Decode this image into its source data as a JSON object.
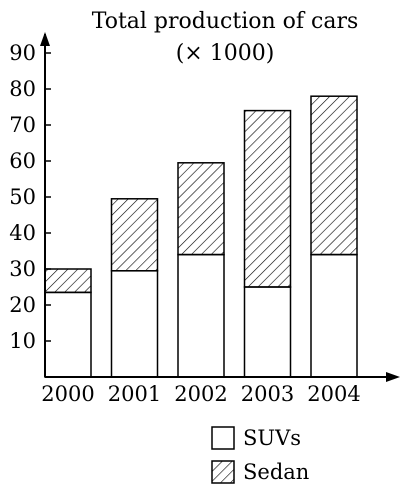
{
  "chart_data": {
    "type": "bar",
    "stacked": true,
    "title": "Total production of cars",
    "subtitle": "(× 1000)",
    "categories": [
      "2000",
      "2001",
      "2002",
      "2003",
      "2004"
    ],
    "series": [
      {
        "name": "SUVs",
        "values": [
          23.5,
          29.5,
          34,
          25,
          34
        ],
        "fill": "plain"
      },
      {
        "name": "Sedan",
        "values": [
          6.5,
          20,
          25.5,
          49,
          44
        ],
        "fill": "hatched"
      }
    ],
    "ylim": [
      0,
      90
    ],
    "yticks": [
      10,
      20,
      30,
      40,
      50,
      60,
      70,
      80,
      90
    ],
    "grid": false,
    "legend_position": "bottom-right",
    "colors": {
      "stroke": "#000000",
      "background": "#ffffff"
    }
  }
}
